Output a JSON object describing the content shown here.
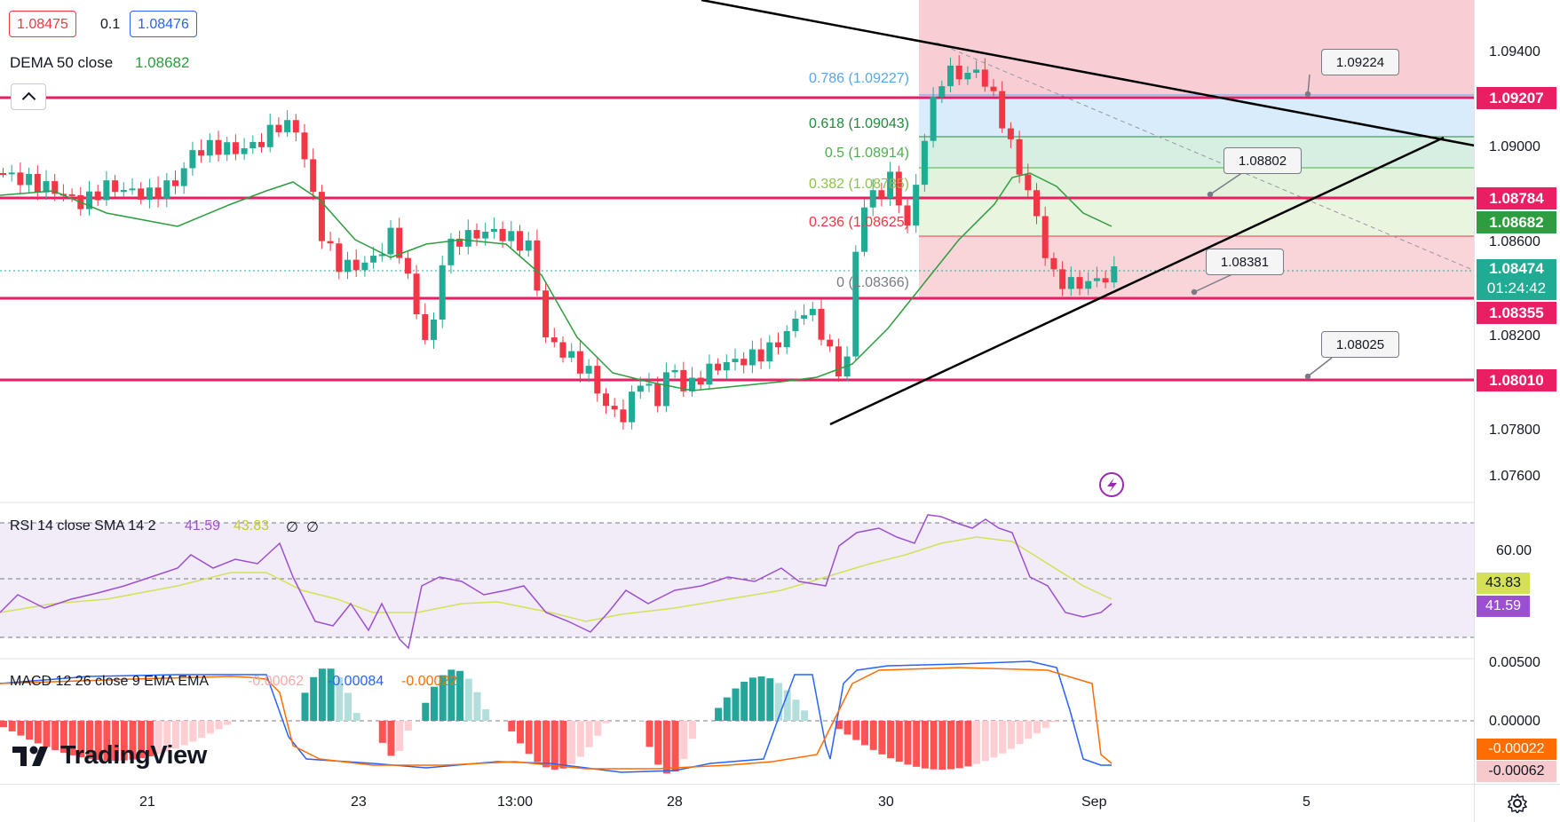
{
  "header": {
    "bid": "1.08475",
    "spread": "0.1",
    "ask": "1.08476",
    "dema_label": "DEMA 50 close",
    "dema_value": "1.08682"
  },
  "fib_labels": [
    {
      "text": "0.786 (1.09227)",
      "color": "#5aa5e8"
    },
    {
      "text": "0.618 (1.09043)",
      "color": "#1e8a3c"
    },
    {
      "text": "0.5 (1.08914)",
      "color": "#4caf50"
    },
    {
      "text": "0.382 (1.08785)",
      "color": "#8bc34a"
    },
    {
      "text": "0.236 (1.08625)",
      "color": "#f23645"
    },
    {
      "text": "0 (1.08366)",
      "color": "#787b86"
    }
  ],
  "callouts": [
    "1.09224",
    "1.08802",
    "1.08381",
    "1.08025"
  ],
  "price_axis": {
    "ticks": [
      "1.09400",
      "1.09000",
      "1.08600",
      "1.08200",
      "1.07800",
      "1.07600"
    ],
    "tags": [
      {
        "text": "1.09207",
        "bg": "#e91e63"
      },
      {
        "text": "1.08784",
        "bg": "#e91e63"
      },
      {
        "text": "1.08682",
        "bg": "#2e9d3f"
      },
      {
        "text": "1.08474",
        "sub": "01:24:42",
        "bg": "#22ab94"
      },
      {
        "text": "1.08355",
        "bg": "#e91e63"
      },
      {
        "text": "1.08010",
        "bg": "#e91e63"
      }
    ]
  },
  "rsi": {
    "label": "RSI 14 close SMA 14 2",
    "value": "41.59",
    "sma": "43.83",
    "extra1": "∅",
    "extra2": "∅",
    "axis_tick": "60.00",
    "tag_sma": "43.83",
    "tag_rsi": "41.59"
  },
  "macd": {
    "label": "MACD 12 26 close 9 EMA EMA",
    "hist": "-0.00062",
    "macd_value": "-0.00084",
    "signal_value": "-0.00022",
    "axis_ticks": [
      "0.00500",
      "0.00000"
    ],
    "tag_signal": "-0.00022",
    "tag_hist": "-0.00062"
  },
  "time_axis": [
    "21",
    "23",
    "13:00",
    "28",
    "30",
    "Sep",
    "5"
  ],
  "branding": {
    "name": "TradingView"
  },
  "colors": {
    "up": "#22ab94",
    "down": "#f23645",
    "hline": "#e91e63",
    "dema": "#2e9d3f",
    "rsi": "#9c4fd0",
    "rsi_sma": "#d4e157",
    "macd": "#2962ff",
    "signal": "#ff6d00"
  }
}
